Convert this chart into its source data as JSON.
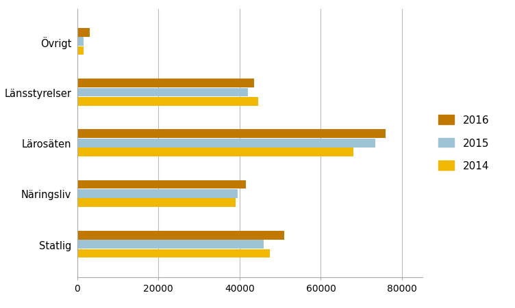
{
  "categories": [
    "Statlig",
    "Näringsliv",
    "Lärosäten",
    "Länsstyrelser",
    "Övrigt"
  ],
  "years": [
    "2016",
    "2015",
    "2014"
  ],
  "values": {
    "Statlig": [
      51000,
      46000,
      47500
    ],
    "Näringsliv": [
      41500,
      39500,
      39000
    ],
    "Lärosäten": [
      76000,
      73500,
      68000
    ],
    "Länsstyrelser": [
      43500,
      42000,
      44500
    ],
    "Övrigt": [
      3000,
      1500,
      1500
    ]
  },
  "colors": {
    "2016": "#C07800",
    "2015": "#9DC3D4",
    "2014": "#F0B800"
  },
  "xlim": [
    0,
    85000
  ],
  "xticks": [
    0,
    20000,
    40000,
    60000,
    80000
  ],
  "xtick_labels": [
    "0",
    "20000",
    "40000",
    "60000",
    "80000"
  ],
  "background_color": "#FFFFFF",
  "bar_height": 0.18,
  "legend_labels": [
    "2016",
    "2015",
    "2014"
  ]
}
